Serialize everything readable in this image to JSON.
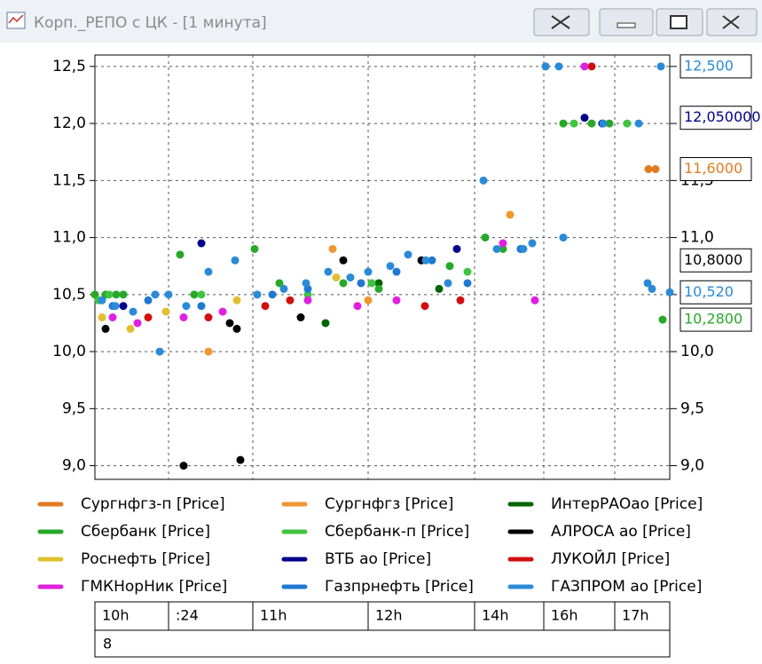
{
  "window": {
    "title": "Корп._РЕПО с ЦК - [1 минута]"
  },
  "chart_data": {
    "type": "scatter",
    "xlim": [
      0,
      162
    ],
    "xticks": [
      {
        "value": 0,
        "label": "10h"
      },
      {
        "value": 20.75,
        "label": ":24"
      },
      {
        "value": 44.5,
        "label": "11h"
      },
      {
        "value": 77,
        "label": "12h"
      },
      {
        "value": 107,
        "label": "14h"
      },
      {
        "value": 126.5,
        "label": "16h"
      },
      {
        "value": 146.5,
        "label": "17h"
      }
    ],
    "ylim": [
      8.88,
      12.6
    ],
    "yticks": [
      {
        "value": 9.0,
        "label": "9,0"
      },
      {
        "value": 9.5,
        "label": "9,5"
      },
      {
        "value": 10.0,
        "label": "10,0"
      },
      {
        "value": 10.5,
        "label": "10,5"
      },
      {
        "value": 11.0,
        "label": "11,0"
      },
      {
        "value": 11.5,
        "label": "11,5"
      },
      {
        "value": 12.0,
        "label": "12,0"
      },
      {
        "value": 12.5,
        "label": "12,5"
      }
    ],
    "grid": true,
    "series": [
      {
        "name": "Сургнфгз-п [Price]",
        "color": "#e07b20",
        "x": [
          156,
          158
        ],
        "values": [
          11.6,
          11.6
        ]
      },
      {
        "name": "Сургнфгз [Price]",
        "color": "#f0962e",
        "x": [
          32,
          67,
          77,
          117
        ],
        "values": [
          10.0,
          10.9,
          10.45,
          11.2
        ]
      },
      {
        "name": "ИнтерРАОао [Price]",
        "color": "#006400",
        "x": [
          65,
          80,
          97
        ],
        "values": [
          10.25,
          10.6,
          10.55
        ]
      },
      {
        "name": "Сбербанк [Price]",
        "color": "#28a828",
        "x": [
          0,
          3,
          6,
          8,
          24,
          28,
          45,
          52,
          70,
          80,
          100,
          110,
          115,
          120,
          132,
          140,
          145,
          160
        ],
        "values": [
          10.5,
          10.5,
          10.5,
          10.5,
          10.85,
          10.5,
          10.9,
          10.6,
          10.6,
          10.55,
          10.75,
          11.0,
          10.9,
          10.9,
          12.0,
          12.0,
          12.0,
          10.28
        ]
      },
      {
        "name": "Сбербанк-п [Price]",
        "color": "#40c440",
        "x": [
          1,
          4,
          30,
          60,
          78,
          105,
          127,
          135,
          150
        ],
        "values": [
          10.45,
          10.5,
          10.5,
          10.5,
          10.6,
          10.7,
          12.5,
          12.0,
          12.0
        ]
      },
      {
        "name": "АЛРОСА ао [Price]",
        "color": "#000000",
        "x": [
          3,
          25,
          38,
          40,
          41,
          58,
          70,
          92
        ],
        "values": [
          10.2,
          9.0,
          10.25,
          10.2,
          9.05,
          10.3,
          10.8,
          10.8
        ]
      },
      {
        "name": "Роснефть [Price]",
        "color": "#e0c030",
        "x": [
          2,
          10,
          20,
          40,
          68,
          75
        ],
        "values": [
          10.3,
          10.2,
          10.35,
          10.45,
          10.65,
          10.6
        ]
      },
      {
        "name": "ВТБ ао [Price]",
        "color": "#00008b",
        "x": [
          8,
          30,
          102,
          138,
          143
        ],
        "values": [
          10.4,
          10.95,
          10.9,
          12.05,
          12.0
        ]
      },
      {
        "name": "ЛУКОЙЛ [Price]",
        "color": "#d01010",
        "x": [
          15,
          32,
          48,
          55,
          93,
          103,
          140
        ],
        "values": [
          10.3,
          10.3,
          10.4,
          10.45,
          10.4,
          10.45,
          12.5
        ]
      },
      {
        "name": "ГМКНорНик [Price]",
        "color": "#e020e0",
        "x": [
          5,
          12,
          25,
          36,
          60,
          74,
          85,
          115,
          124,
          138
        ],
        "values": [
          10.3,
          10.25,
          10.3,
          10.35,
          10.45,
          10.4,
          10.45,
          10.95,
          10.45,
          12.5
        ]
      },
      {
        "name": "Газпрнефть [Price]",
        "color": "#1f78d2",
        "x": [
          5,
          15,
          30,
          50,
          60,
          75,
          85,
          95,
          105,
          120
        ],
        "values": [
          10.4,
          10.45,
          10.4,
          10.5,
          10.55,
          10.6,
          10.7,
          10.8,
          10.6,
          10.9
        ]
      },
      {
        "name": "ГАЗПРОМ ао [Price]",
        "color": "#2a8ad8",
        "x": [
          2,
          5.75,
          10.75,
          17,
          18.25,
          20.75,
          25.75,
          32,
          39.5,
          45.75,
          53.25,
          59.5,
          65.75,
          72,
          77,
          83.25,
          88.25,
          93.25,
          99.5,
          109.5,
          113.25,
          120.75,
          123.25,
          127,
          130.75,
          132,
          143.25,
          153.25,
          155.75,
          157,
          159.5,
          162
        ],
        "values": [
          10.45,
          10.4,
          10.35,
          10.5,
          10.0,
          10.5,
          10.4,
          10.7,
          10.8,
          10.5,
          10.55,
          10.6,
          10.7,
          10.65,
          10.7,
          10.75,
          10.85,
          10.8,
          10.6,
          11.5,
          10.9,
          10.9,
          10.95,
          12.5,
          12.5,
          11.0,
          12.0,
          12.0,
          10.6,
          10.55,
          12.5,
          10.52
        ]
      }
    ],
    "last_values": [
      {
        "value": 12.5,
        "label": "12,500",
        "color": "#2a8ad8"
      },
      {
        "value": 12.05,
        "label": "12,050000",
        "color": "#00008b"
      },
      {
        "value": 11.6,
        "label": "11,6000",
        "color": "#e07b20"
      },
      {
        "value": 10.8,
        "label": "10,8000",
        "color": "#000000"
      },
      {
        "value": 10.52,
        "label": "10,520",
        "color": "#2a8ad8"
      },
      {
        "value": 10.28,
        "label": "10,2800",
        "color": "#28a828"
      }
    ]
  },
  "bottom_panel": {
    "value_text": "8"
  }
}
